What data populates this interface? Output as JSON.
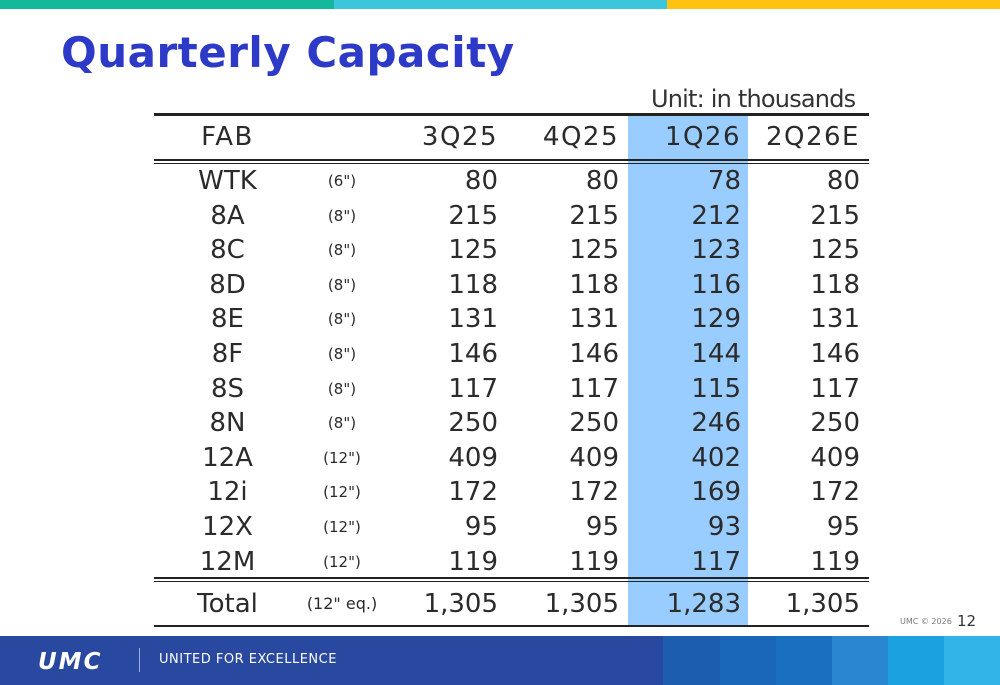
{
  "title": "Quarterly Capacity",
  "unit_note": "Unit: in thousands",
  "table": {
    "headers": [
      "FAB",
      "",
      "3Q25",
      "4Q25",
      "1Q26",
      "2Q26E"
    ],
    "highlight_column": "1Q26",
    "rows": [
      {
        "fab": "WTK",
        "size": "(6\")",
        "values": [
          "80",
          "80",
          "78",
          "80"
        ]
      },
      {
        "fab": "8A",
        "size": "(8\")",
        "values": [
          "215",
          "215",
          "212",
          "215"
        ]
      },
      {
        "fab": "8C",
        "size": "(8\")",
        "values": [
          "125",
          "125",
          "123",
          "125"
        ]
      },
      {
        "fab": "8D",
        "size": "(8\")",
        "values": [
          "118",
          "118",
          "116",
          "118"
        ]
      },
      {
        "fab": "8E",
        "size": "(8\")",
        "values": [
          "131",
          "131",
          "129",
          "131"
        ]
      },
      {
        "fab": "8F",
        "size": "(8\")",
        "values": [
          "146",
          "146",
          "144",
          "146"
        ]
      },
      {
        "fab": "8S",
        "size": "(8\")",
        "values": [
          "117",
          "117",
          "115",
          "117"
        ]
      },
      {
        "fab": "8N",
        "size": "(8\")",
        "values": [
          "250",
          "250",
          "246",
          "250"
        ]
      },
      {
        "fab": "12A",
        "size": "(12\")",
        "values": [
          "409",
          "409",
          "402",
          "409"
        ]
      },
      {
        "fab": "12i",
        "size": "(12\")",
        "values": [
          "172",
          "172",
          "169",
          "172"
        ]
      },
      {
        "fab": "12X",
        "size": "(12\")",
        "values": [
          "95",
          "95",
          "93",
          "95"
        ]
      },
      {
        "fab": "12M",
        "size": "(12\")",
        "values": [
          "119",
          "119",
          "117",
          "119"
        ]
      }
    ],
    "total": {
      "label": "Total",
      "size": "(12\" eq.)",
      "values": [
        "1,305",
        "1,305",
        "1,283",
        "1,305"
      ]
    }
  },
  "footer": {
    "logo": "UMC",
    "slogan": "UNITED FOR EXCELLENCE",
    "copyright": "UMC © 2026",
    "page_number": "12"
  },
  "colors": {
    "title": "#2d3ac8",
    "highlight": "#99ccff",
    "footer_bg": "#2948a0",
    "top_bar": [
      "#14b89b",
      "#3bc6dc",
      "#ffc20e"
    ],
    "footer_blocks": [
      "#1d5db0",
      "#1a66b8",
      "#1a70c0",
      "#2a86d0",
      "#1ba0e0",
      "#33b4e8"
    ]
  }
}
